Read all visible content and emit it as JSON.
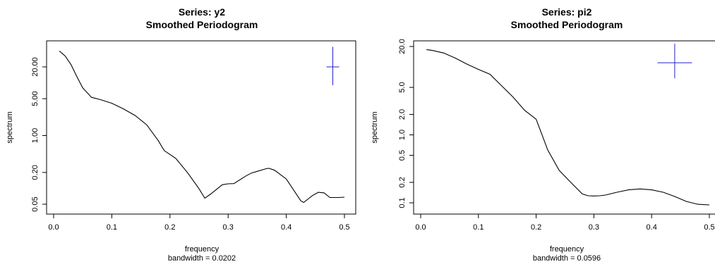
{
  "chart_data": [
    {
      "type": "line",
      "title": "Series: y2",
      "subtitle": "Smoothed Periodogram",
      "xlabel": "frequency",
      "xlabel2": "bandwidth = 0.0202",
      "ylabel": "spectrum",
      "log_y": true,
      "xlim": [
        0.0,
        0.5
      ],
      "ylim": [
        0.04,
        50
      ],
      "xticks": [
        0.0,
        0.1,
        0.2,
        0.3,
        0.4,
        0.5
      ],
      "xtick_labels": [
        "0.0",
        "0.1",
        "0.2",
        "0.3",
        "0.4",
        "0.5"
      ],
      "yticks": [
        0.05,
        0.2,
        1.0,
        5.0,
        20.0
      ],
      "ytick_labels": [
        "0.05",
        "0.20",
        "1.00",
        "5.00",
        "20.00"
      ],
      "x": [
        0.01,
        0.02,
        0.03,
        0.04,
        0.05,
        0.065,
        0.08,
        0.1,
        0.12,
        0.14,
        0.16,
        0.18,
        0.19,
        0.21,
        0.23,
        0.25,
        0.26,
        0.27,
        0.29,
        0.3,
        0.31,
        0.33,
        0.34,
        0.35,
        0.365,
        0.37,
        0.38,
        0.4,
        0.425,
        0.43,
        0.445,
        0.455,
        0.465,
        0.475,
        0.49,
        0.5
      ],
      "y": [
        40,
        32,
        22,
        13,
        8,
        5.3,
        4.8,
        4.1,
        3.2,
        2.4,
        1.6,
        0.8,
        0.52,
        0.37,
        0.2,
        0.098,
        0.065,
        0.078,
        0.117,
        0.122,
        0.123,
        0.17,
        0.195,
        0.21,
        0.235,
        0.24,
        0.22,
        0.15,
        0.058,
        0.054,
        0.073,
        0.084,
        0.082,
        0.067,
        0.067,
        0.068
      ],
      "ci_marker": {
        "x": 0.48,
        "y": 20,
        "lower": 9,
        "upper": 48
      }
    },
    {
      "type": "line",
      "title": "Series: pi2",
      "subtitle": "Smoothed Periodogram",
      "xlabel": "frequency",
      "xlabel2": "bandwidth = 0.0596",
      "ylabel": "spectrum",
      "log_y": true,
      "xlim": [
        0.0,
        0.5
      ],
      "ylim": [
        0.09,
        25
      ],
      "xticks": [
        0.0,
        0.1,
        0.2,
        0.3,
        0.4,
        0.5
      ],
      "xtick_labels": [
        "0.0",
        "0.1",
        "0.2",
        "0.3",
        "0.4",
        "0.5"
      ],
      "yticks": [
        0.1,
        0.2,
        0.5,
        1.0,
        2.0,
        5.0,
        20.0
      ],
      "ytick_labels": [
        "0.1",
        "0.2",
        "0.5",
        "1.0",
        "2.0",
        "5.0",
        "20.0"
      ],
      "x": [
        0.01,
        0.02,
        0.04,
        0.06,
        0.08,
        0.1,
        0.12,
        0.14,
        0.16,
        0.18,
        0.2,
        0.22,
        0.24,
        0.26,
        0.28,
        0.29,
        0.3,
        0.31,
        0.32,
        0.34,
        0.36,
        0.38,
        0.4,
        0.42,
        0.44,
        0.46,
        0.48,
        0.5
      ],
      "y": [
        18,
        17.5,
        16,
        13.5,
        11,
        9.2,
        7.8,
        5.3,
        3.6,
        2.3,
        1.7,
        0.6,
        0.3,
        0.2,
        0.135,
        0.127,
        0.126,
        0.127,
        0.13,
        0.143,
        0.155,
        0.16,
        0.155,
        0.143,
        0.124,
        0.105,
        0.095,
        0.093
      ],
      "ci_marker": {
        "x": 0.44,
        "y": 11.5,
        "lower": 6.8,
        "upper": 22,
        "width": 0.06
      }
    }
  ]
}
